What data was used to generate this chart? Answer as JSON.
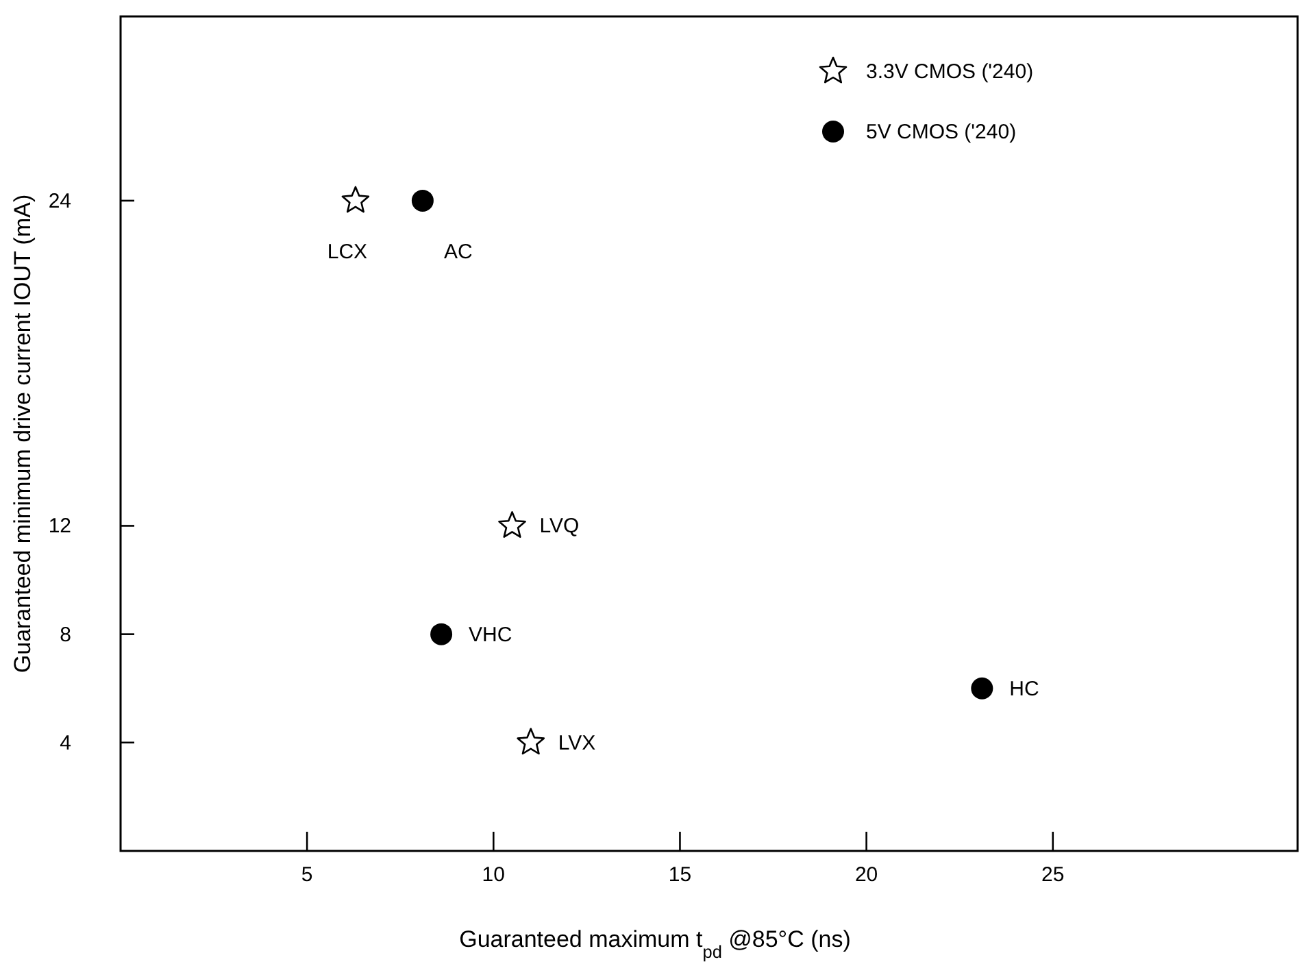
{
  "chart_data": {
    "type": "scatter",
    "xlabel": "Guaranteed maximum t$_{pd}$ @85°C (ns)",
    "ylabel": "Guaranteed minimum drive current IOUT (mA)",
    "xlim": [
      0,
      31.6
    ],
    "ylim": [
      0,
      30.8
    ],
    "xticks": [
      5,
      10,
      15,
      20,
      25
    ],
    "yticks": [
      4,
      8,
      12,
      24
    ],
    "grid": false,
    "legend": "top right",
    "series": [
      {
        "name": "3.3V CMOS ('240)",
        "color": "#000000",
        "marker": "star",
        "x": [
          6.3,
          10.5,
          11
        ],
        "values": [
          24,
          12,
          4
        ]
      },
      {
        "name": "5V CMOS ('240)",
        "color": "#000000",
        "marker": "circle",
        "x": [
          8.1,
          8.6,
          23.1
        ],
        "values": [
          24,
          8,
          6
        ]
      }
    ],
    "annotations": [
      {
        "text": "LCX",
        "x": 6.3,
        "y": 24
      },
      {
        "text": "AC",
        "x": 8.1,
        "y": 24
      },
      {
        "text": "LVQ",
        "x": 10.5,
        "y": 12
      },
      {
        "text": "VHC",
        "x": 8.6,
        "y": 8
      },
      {
        "text": "LVX",
        "x": 11,
        "y": 4
      },
      {
        "text": "HC",
        "x": 23.1,
        "y": 6
      }
    ]
  }
}
